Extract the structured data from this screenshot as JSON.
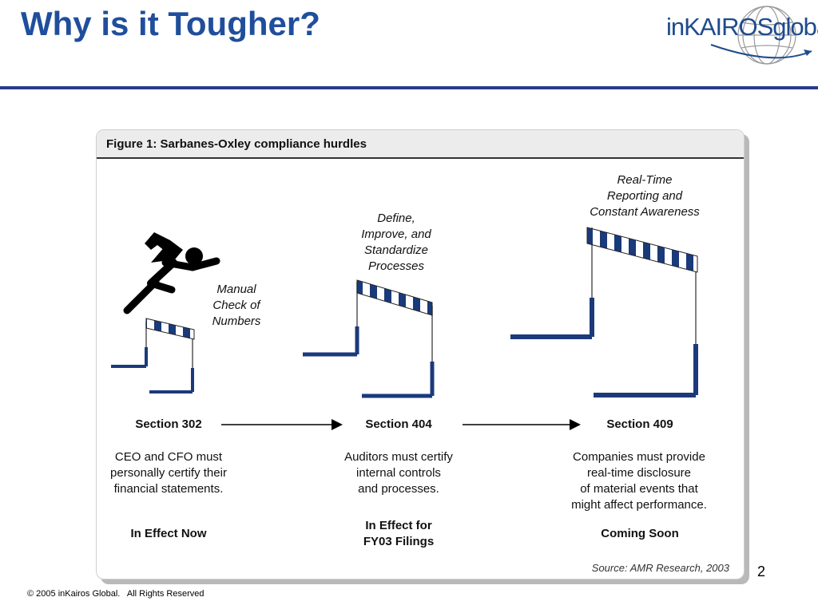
{
  "slide": {
    "title": "Why is it Tougher?",
    "page_number": "2",
    "footer": "© 2005 inKairos Global.   All Rights Reserved",
    "logo_text": "inKAIROSglobal",
    "accent_color": "#1F4E9C",
    "rule_color": "#2B3A8C"
  },
  "figure": {
    "title": "Figure 1: Sarbanes-Oxley compliance hurdles",
    "source": "Source: AMR Research, 2003",
    "hurdle_color": "#1A3A7A",
    "hurdles": [
      {
        "caption": [
          "Manual",
          "Check of",
          "Numbers"
        ],
        "section": "Section 302",
        "description": [
          "CEO and CFO must",
          "personally certify their",
          "financial statements."
        ],
        "status": [
          "In Effect Now"
        ]
      },
      {
        "caption": [
          "Define,",
          "Improve, and",
          "Standardize",
          "Processes"
        ],
        "section": "Section 404",
        "description": [
          "Auditors must certify",
          "internal controls",
          "and processes."
        ],
        "status": [
          "In Effect for",
          "FY03 Filings"
        ]
      },
      {
        "caption": [
          "Real-Time",
          "Reporting and",
          "Constant Awareness"
        ],
        "section": "Section 409",
        "description": [
          "Companies must provide",
          "real-time disclosure",
          "of material events that",
          "might affect performance."
        ],
        "status": [
          "Coming Soon"
        ]
      }
    ]
  }
}
